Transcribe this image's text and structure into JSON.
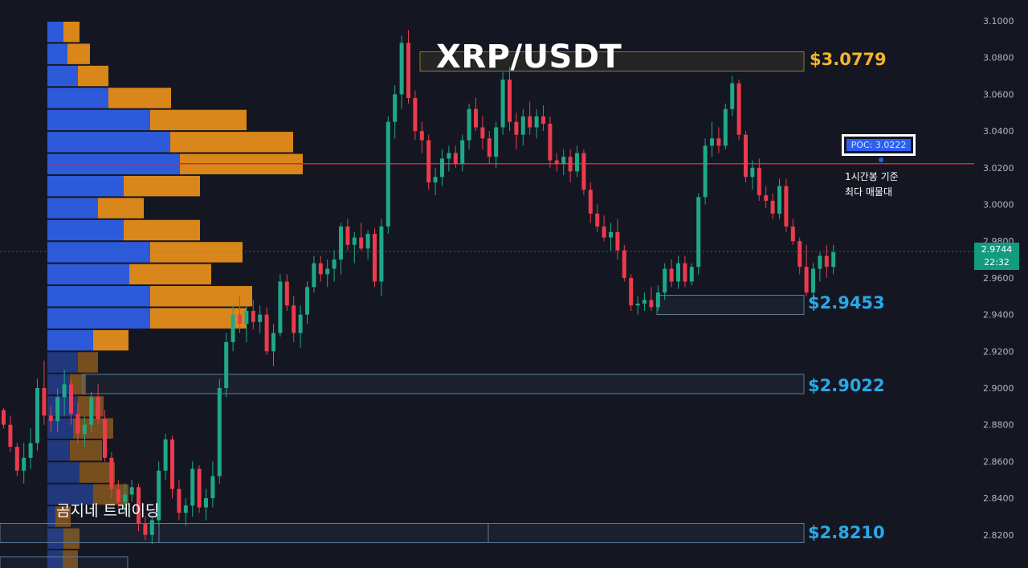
{
  "chart_data": {
    "type": "candlestick",
    "title": "XRP/USDT",
    "watermark": "곰지네 트레이딩",
    "y_axis": {
      "range": [
        2.8,
        3.105
      ],
      "ticks": [
        "3.1000",
        "3.0800",
        "3.0600",
        "3.0400",
        "3.0200",
        "3.0000",
        "2.9800",
        "2.9600",
        "2.9400",
        "2.9200",
        "2.9000",
        "2.8800",
        "2.8600",
        "2.8400",
        "2.8200"
      ]
    },
    "current_price": {
      "value": "2.9744",
      "countdown": "22:32",
      "color": "#129b7f"
    },
    "poc": {
      "label": "POC: 3.0222",
      "value": 3.0222,
      "note_line1": "1시간봉 기준",
      "note_line2": "최다 매물대",
      "line_color": "#e0262b"
    },
    "levels": [
      {
        "label": "$3.0779",
        "value": 3.0779,
        "color": "#f3b52a"
      },
      {
        "label": "$2.9453",
        "value": 2.9453,
        "color": "#28a9e8"
      },
      {
        "label": "$2.9022",
        "value": 2.9022,
        "color": "#28a9e8"
      },
      {
        "label": "$2.8210",
        "value": 2.821,
        "color": "#28a9e8"
      }
    ],
    "volume_profile": {
      "bin_size": 0.012,
      "top_price": 3.1,
      "colors": {
        "buy": "#2d5ad8",
        "sell": "#d9861a"
      },
      "bins": [
        {
          "buy": 0.2,
          "sell": 0.2
        },
        {
          "buy": 0.25,
          "sell": 0.28
        },
        {
          "buy": 0.38,
          "sell": 0.38
        },
        {
          "buy": 0.76,
          "sell": 0.78
        },
        {
          "buy": 1.28,
          "sell": 1.2
        },
        {
          "buy": 1.53,
          "sell": 1.53
        },
        {
          "buy": 1.65,
          "sell": 1.53
        },
        {
          "buy": 0.95,
          "sell": 0.95
        },
        {
          "buy": 0.63,
          "sell": 0.57
        },
        {
          "buy": 0.95,
          "sell": 0.95
        },
        {
          "buy": 1.28,
          "sell": 1.15
        },
        {
          "buy": 1.02,
          "sell": 1.02
        },
        {
          "buy": 1.28,
          "sell": 1.27
        },
        {
          "buy": 1.28,
          "sell": 1.2
        },
        {
          "buy": 0.57,
          "sell": 0.44
        },
        {
          "buy": 0.38,
          "sell": 0.25
        },
        {
          "buy": 0.28,
          "sell": 0.2
        },
        {
          "buy": 0.38,
          "sell": 0.32
        },
        {
          "buy": 0.32,
          "sell": 0.5
        },
        {
          "buy": 0.28,
          "sell": 0.4
        },
        {
          "buy": 0.4,
          "sell": 0.44
        },
        {
          "buy": 0.57,
          "sell": 0.44
        },
        {
          "buy": 0.1,
          "sell": 0.19
        },
        {
          "buy": 0.2,
          "sell": 0.2
        },
        {
          "buy": 0.19,
          "sell": 0.19
        }
      ]
    },
    "candles": [
      [
        2.888,
        2.889,
        2.878,
        2.88
      ],
      [
        2.88,
        2.885,
        2.865,
        2.868
      ],
      [
        2.868,
        2.87,
        2.852,
        2.855
      ],
      [
        2.855,
        2.87,
        2.848,
        2.862
      ],
      [
        2.862,
        2.878,
        2.856,
        2.87
      ],
      [
        2.87,
        2.905,
        2.866,
        2.9
      ],
      [
        2.9,
        2.915,
        2.88,
        2.885
      ],
      [
        2.885,
        2.89,
        2.876,
        2.882
      ],
      [
        2.882,
        2.9,
        2.876,
        2.895
      ],
      [
        2.895,
        2.91,
        2.885,
        2.902
      ],
      [
        2.902,
        2.905,
        2.88,
        2.886
      ],
      [
        2.886,
        2.892,
        2.87,
        2.875
      ],
      [
        2.875,
        2.885,
        2.868,
        2.88
      ],
      [
        2.88,
        2.898,
        2.876,
        2.895
      ],
      [
        2.895,
        2.902,
        2.88,
        2.883
      ],
      [
        2.883,
        2.888,
        2.86,
        2.862
      ],
      [
        2.862,
        2.865,
        2.84,
        2.845
      ],
      [
        2.845,
        2.85,
        2.835,
        2.838
      ],
      [
        2.838,
        2.848,
        2.832,
        2.842
      ],
      [
        2.842,
        2.85,
        2.838,
        2.846
      ],
      [
        2.846,
        2.848,
        2.822,
        2.826
      ],
      [
        2.826,
        2.83,
        2.817,
        2.82
      ],
      [
        2.82,
        2.83,
        2.815,
        2.828
      ],
      [
        2.828,
        2.86,
        2.825,
        2.855
      ],
      [
        2.855,
        2.875,
        2.85,
        2.872
      ],
      [
        2.872,
        2.874,
        2.84,
        2.845
      ],
      [
        2.845,
        2.85,
        2.828,
        2.832
      ],
      [
        2.832,
        2.84,
        2.825,
        2.836
      ],
      [
        2.836,
        2.86,
        2.83,
        2.856
      ],
      [
        2.856,
        2.858,
        2.832,
        2.835
      ],
      [
        2.835,
        2.845,
        2.828,
        2.84
      ],
      [
        2.84,
        2.86,
        2.835,
        2.852
      ],
      [
        2.852,
        2.905,
        2.848,
        2.9
      ],
      [
        2.9,
        2.93,
        2.895,
        2.925
      ],
      [
        2.925,
        2.945,
        2.92,
        2.94
      ],
      [
        2.94,
        2.95,
        2.93,
        2.935
      ],
      [
        2.935,
        2.945,
        2.925,
        2.942
      ],
      [
        2.942,
        2.948,
        2.932,
        2.936
      ],
      [
        2.936,
        2.945,
        2.93,
        2.94
      ],
      [
        2.94,
        2.944,
        2.918,
        2.92
      ],
      [
        2.92,
        2.935,
        2.912,
        2.93
      ],
      [
        2.93,
        2.962,
        2.928,
        2.958
      ],
      [
        2.958,
        2.962,
        2.942,
        2.945
      ],
      [
        2.945,
        2.95,
        2.925,
        2.93
      ],
      [
        2.93,
        2.945,
        2.922,
        2.94
      ],
      [
        2.94,
        2.958,
        2.935,
        2.955
      ],
      [
        2.955,
        2.972,
        2.952,
        2.968
      ],
      [
        2.968,
        2.972,
        2.958,
        2.962
      ],
      [
        2.962,
        2.97,
        2.955,
        2.965
      ],
      [
        2.965,
        2.975,
        2.958,
        2.97
      ],
      [
        2.97,
        2.99,
        2.962,
        2.988
      ],
      [
        2.988,
        2.992,
        2.975,
        2.978
      ],
      [
        2.978,
        2.985,
        2.968,
        2.982
      ],
      [
        2.982,
        2.99,
        2.975,
        2.976
      ],
      [
        2.976,
        2.986,
        2.97,
        2.984
      ],
      [
        2.984,
        2.987,
        2.955,
        2.958
      ],
      [
        2.958,
        2.992,
        2.95,
        2.988
      ],
      [
        2.988,
        3.048,
        2.984,
        3.045
      ],
      [
        3.045,
        3.065,
        3.036,
        3.06
      ],
      [
        3.06,
        3.092,
        3.052,
        3.088
      ],
      [
        3.088,
        3.095,
        3.055,
        3.058
      ],
      [
        3.058,
        3.062,
        3.035,
        3.04
      ],
      [
        3.04,
        3.045,
        3.028,
        3.035
      ],
      [
        3.035,
        3.038,
        3.008,
        3.012
      ],
      [
        3.012,
        3.02,
        3.005,
        3.015
      ],
      [
        3.015,
        3.03,
        3.01,
        3.025
      ],
      [
        3.025,
        3.032,
        3.018,
        3.028
      ],
      [
        3.028,
        3.032,
        3.02,
        3.022
      ],
      [
        3.022,
        3.038,
        3.018,
        3.035
      ],
      [
        3.035,
        3.055,
        3.03,
        3.052
      ],
      [
        3.052,
        3.058,
        3.04,
        3.042
      ],
      [
        3.042,
        3.048,
        3.03,
        3.036
      ],
      [
        3.036,
        3.04,
        3.022,
        3.026
      ],
      [
        3.026,
        3.045,
        3.02,
        3.042
      ],
      [
        3.042,
        3.072,
        3.038,
        3.068
      ],
      [
        3.068,
        3.075,
        3.04,
        3.045
      ],
      [
        3.045,
        3.05,
        3.03,
        3.038
      ],
      [
        3.038,
        3.052,
        3.032,
        3.048
      ],
      [
        3.048,
        3.056,
        3.038,
        3.042
      ],
      [
        3.042,
        3.052,
        3.036,
        3.048
      ],
      [
        3.048,
        3.054,
        3.04,
        3.044
      ],
      [
        3.044,
        3.048,
        3.02,
        3.024
      ],
      [
        3.024,
        3.028,
        3.018,
        3.022
      ],
      [
        3.022,
        3.03,
        3.016,
        3.026
      ],
      [
        3.026,
        3.03,
        3.012,
        3.018
      ],
      [
        3.018,
        3.032,
        3.015,
        3.028
      ],
      [
        3.028,
        3.03,
        3.005,
        3.008
      ],
      [
        3.008,
        3.012,
        2.99,
        2.995
      ],
      [
        2.995,
        3.0,
        2.985,
        2.988
      ],
      [
        2.988,
        2.994,
        2.98,
        2.982
      ],
      [
        2.982,
        2.99,
        2.975,
        2.985
      ],
      [
        2.985,
        2.992,
        2.97,
        2.975
      ],
      [
        2.975,
        2.978,
        2.958,
        2.96
      ],
      [
        2.96,
        2.962,
        2.942,
        2.945
      ],
      [
        2.945,
        2.95,
        2.94,
        2.946
      ],
      [
        2.946,
        2.952,
        2.942,
        2.948
      ],
      [
        2.948,
        2.955,
        2.942,
        2.944
      ],
      [
        2.944,
        2.956,
        2.942,
        2.952
      ],
      [
        2.952,
        2.968,
        2.948,
        2.965
      ],
      [
        2.965,
        2.97,
        2.955,
        2.958
      ],
      [
        2.958,
        2.972,
        2.954,
        2.968
      ],
      [
        2.968,
        2.972,
        2.955,
        2.958
      ],
      [
        2.958,
        2.968,
        2.956,
        2.966
      ],
      [
        2.966,
        3.006,
        2.962,
        3.004
      ],
      [
        3.004,
        3.036,
        3.0,
        3.032
      ],
      [
        3.032,
        3.045,
        3.026,
        3.036
      ],
      [
        3.036,
        3.042,
        3.028,
        3.032
      ],
      [
        3.032,
        3.055,
        3.03,
        3.052
      ],
      [
        3.052,
        3.07,
        3.048,
        3.066
      ],
      [
        3.066,
        3.068,
        3.035,
        3.038
      ],
      [
        3.038,
        3.04,
        3.012,
        3.015
      ],
      [
        3.015,
        3.024,
        3.008,
        3.02
      ],
      [
        3.02,
        3.025,
        3.002,
        3.005
      ],
      [
        3.005,
        3.01,
        2.998,
        3.002
      ],
      [
        3.002,
        3.006,
        2.992,
        2.995
      ],
      [
        2.995,
        3.014,
        2.992,
        3.01
      ],
      [
        3.01,
        3.014,
        2.985,
        2.988
      ],
      [
        2.988,
        2.992,
        2.978,
        2.98
      ],
      [
        2.98,
        2.982,
        2.962,
        2.966
      ],
      [
        2.966,
        2.978,
        2.95,
        2.952
      ],
      [
        2.952,
        2.968,
        2.948,
        2.965
      ],
      [
        2.965,
        2.974,
        2.958,
        2.972
      ],
      [
        2.972,
        2.978,
        2.96,
        2.966
      ],
      [
        2.966,
        2.978,
        2.962,
        2.974
      ]
    ]
  }
}
